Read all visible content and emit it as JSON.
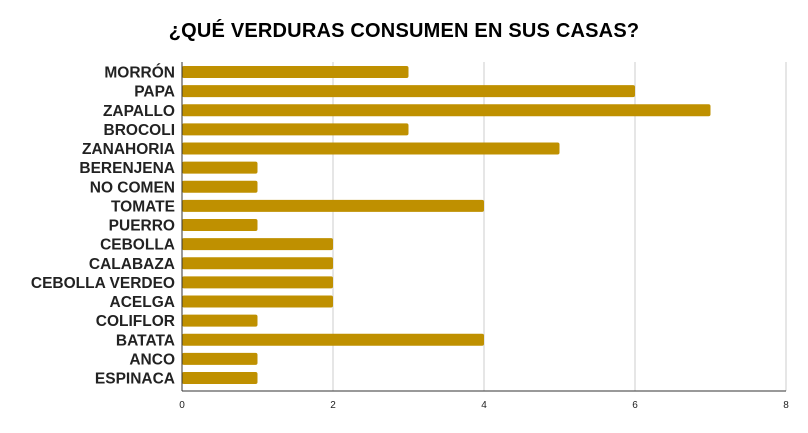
{
  "chart_data": {
    "type": "bar",
    "orientation": "horizontal",
    "title": "¿QUÉ VERDURAS CONSUMEN EN SUS CASAS?",
    "xlabel": "",
    "ylabel": "",
    "categories": [
      "MORRÓN",
      "PAPA",
      "ZAPALLO",
      "BROCOLI",
      "ZANAHORIA",
      "BERENJENA",
      "NO COMEN",
      "TOMATE",
      "PUERRO",
      "CEBOLLA",
      "CALABAZA",
      "CEBOLLA VERDEO",
      "ACELGA",
      "COLIFLOR",
      "BATATA",
      "ANCO",
      "ESPINACA"
    ],
    "values": [
      3,
      6,
      7,
      3,
      5,
      1,
      1,
      4,
      1,
      2,
      2,
      2,
      2,
      1,
      4,
      1,
      1
    ],
    "xlim": [
      0,
      8
    ],
    "xticks": [
      "0",
      "2",
      "4",
      "6",
      "8"
    ],
    "grid": true,
    "legend": "none",
    "bar_color": "#bf9000",
    "grid_color": "#cccccc",
    "axis_color": "#333333"
  }
}
